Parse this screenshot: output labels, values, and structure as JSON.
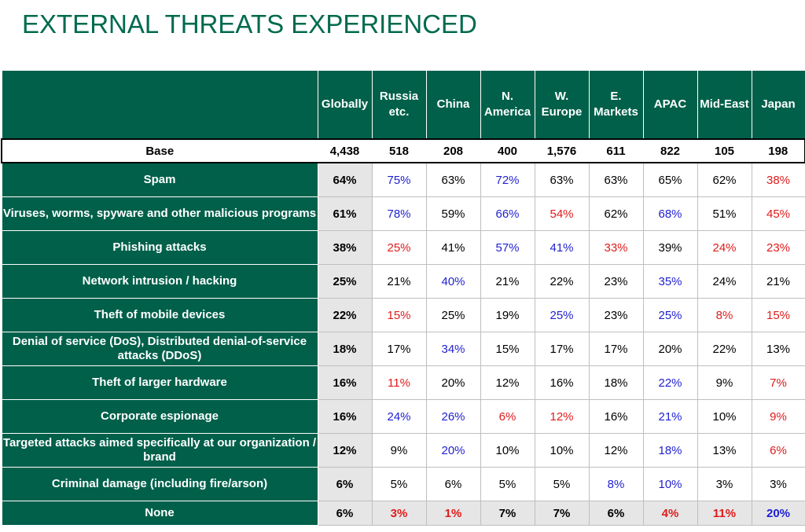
{
  "title": "EXTERNAL THREATS EXPERIENCED",
  "colors": {
    "header_bg": "#00604a",
    "title": "#006a4e",
    "higher": "#1f1fd0",
    "lower": "#e01b1b",
    "neutral": "#000000",
    "global_bg": "#e6e6e6"
  },
  "chart_data": {
    "type": "table",
    "columns": [
      "Globally",
      "Russia etc.",
      "China",
      "N. America",
      "W. Europe",
      "E. Markets",
      "APAC",
      "Mid-East",
      "Japan"
    ],
    "base": {
      "label": "Base",
      "values": [
        "4,438",
        "518",
        "208",
        "400",
        "1,576",
        "611",
        "822",
        "105",
        "198"
      ]
    },
    "rows": [
      {
        "label": "Spam",
        "values": [
          "64%",
          "75%",
          "63%",
          "72%",
          "63%",
          "63%",
          "65%",
          "62%",
          "38%"
        ],
        "colors": [
          "k",
          "b",
          "k",
          "b",
          "k",
          "k",
          "k",
          "k",
          "r"
        ]
      },
      {
        "label": "Viruses, worms, spyware and other malicious programs",
        "values": [
          "61%",
          "78%",
          "59%",
          "66%",
          "54%",
          "62%",
          "68%",
          "51%",
          "45%"
        ],
        "colors": [
          "k",
          "b",
          "k",
          "b",
          "r",
          "k",
          "b",
          "k",
          "r"
        ]
      },
      {
        "label": "Phishing attacks",
        "values": [
          "38%",
          "25%",
          "41%",
          "57%",
          "41%",
          "33%",
          "39%",
          "24%",
          "23%"
        ],
        "colors": [
          "k",
          "r",
          "k",
          "b",
          "b",
          "r",
          "k",
          "r",
          "r"
        ]
      },
      {
        "label": "Network intrusion / hacking",
        "values": [
          "25%",
          "21%",
          "40%",
          "21%",
          "22%",
          "23%",
          "35%",
          "24%",
          "21%"
        ],
        "colors": [
          "k",
          "k",
          "b",
          "k",
          "k",
          "k",
          "b",
          "k",
          "k"
        ]
      },
      {
        "label": "Theft of mobile devices",
        "values": [
          "22%",
          "15%",
          "25%",
          "19%",
          "25%",
          "23%",
          "25%",
          "8%",
          "15%"
        ],
        "colors": [
          "k",
          "r",
          "k",
          "k",
          "b",
          "k",
          "b",
          "r",
          "r"
        ]
      },
      {
        "label": "Denial of service (DoS), Distributed denial-of-service attacks (DDoS)",
        "values": [
          "18%",
          "17%",
          "34%",
          "15%",
          "17%",
          "17%",
          "20%",
          "22%",
          "13%"
        ],
        "colors": [
          "k",
          "k",
          "b",
          "k",
          "k",
          "k",
          "k",
          "k",
          "k"
        ]
      },
      {
        "label": "Theft of larger hardware",
        "values": [
          "16%",
          "11%",
          "20%",
          "12%",
          "16%",
          "18%",
          "22%",
          "9%",
          "7%"
        ],
        "colors": [
          "k",
          "r",
          "k",
          "k",
          "k",
          "k",
          "b",
          "k",
          "r"
        ]
      },
      {
        "label": "Corporate espionage",
        "values": [
          "16%",
          "24%",
          "26%",
          "6%",
          "12%",
          "16%",
          "21%",
          "10%",
          "9%"
        ],
        "colors": [
          "k",
          "b",
          "b",
          "r",
          "r",
          "k",
          "b",
          "k",
          "r"
        ]
      },
      {
        "label": "Targeted attacks aimed specifically at our organization / brand",
        "values": [
          "12%",
          "9%",
          "20%",
          "10%",
          "10%",
          "12%",
          "18%",
          "13%",
          "6%"
        ],
        "colors": [
          "k",
          "k",
          "b",
          "k",
          "k",
          "k",
          "b",
          "k",
          "r"
        ]
      },
      {
        "label": "Criminal damage (including fire/arson)",
        "values": [
          "6%",
          "5%",
          "6%",
          "5%",
          "5%",
          "8%",
          "10%",
          "3%",
          "3%"
        ],
        "colors": [
          "k",
          "k",
          "k",
          "k",
          "k",
          "b",
          "b",
          "k",
          "k"
        ]
      },
      {
        "label": "None",
        "values": [
          "6%",
          "3%",
          "1%",
          "7%",
          "7%",
          "6%",
          "4%",
          "11%",
          "20%"
        ],
        "colors": [
          "k",
          "r",
          "r",
          "k",
          "k",
          "k",
          "r",
          "r",
          "b"
        ]
      }
    ]
  }
}
